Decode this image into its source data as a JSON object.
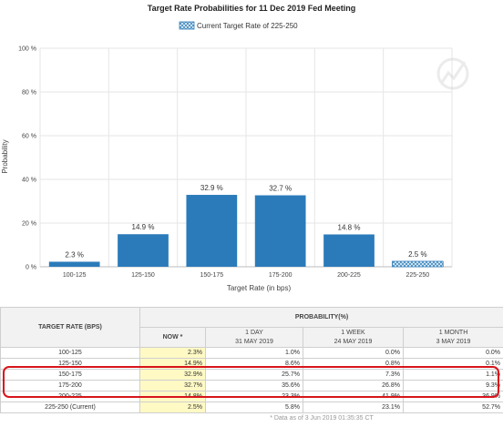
{
  "colors": {
    "bar": "#2b7bba",
    "current": "#9ccae6",
    "grid": "#e6e6e6",
    "highlight": "#d8141b"
  },
  "chart_data": {
    "type": "bar",
    "title": "Target Rate Probabilities for 11 Dec 2019 Fed Meeting",
    "legend": {
      "label": "Current Target Rate of 225-250",
      "position": "top"
    },
    "xlabel": "Target Rate (in bps)",
    "ylabel": "Probability",
    "ylim": [
      0,
      100
    ],
    "yticks": [
      0,
      20,
      40,
      60,
      80,
      100
    ],
    "ytick_labels": [
      "0 %",
      "20 %",
      "40 %",
      "60 %",
      "80 %",
      "100 %"
    ],
    "grid": true,
    "categories": [
      "100-125",
      "125-150",
      "150-175",
      "175-200",
      "200-225",
      "225-250"
    ],
    "values": [
      2.3,
      14.9,
      32.9,
      32.7,
      14.8,
      2.5
    ],
    "value_labels": [
      "2.3 %",
      "14.9 %",
      "32.9 %",
      "32.7 %",
      "14.8 %",
      "2.5 %"
    ],
    "current_category": "225-250"
  },
  "table": {
    "target_header": "TARGET RATE (BPS)",
    "prob_header": "PROBABILITY(%)",
    "columns": [
      {
        "label": "NOW *",
        "sub": ""
      },
      {
        "label": "1 DAY",
        "sub": "31 MAY 2019"
      },
      {
        "label": "1 WEEK",
        "sub": "24 MAY 2019"
      },
      {
        "label": "1 MONTH",
        "sub": "3 MAY 2019"
      }
    ],
    "rows": [
      {
        "range": "100-125",
        "values": [
          "2.3%",
          "1.0%",
          "0.0%",
          "0.0%"
        ]
      },
      {
        "range": "125-150",
        "values": [
          "14.9%",
          "8.6%",
          "0.8%",
          "0.1%"
        ]
      },
      {
        "range": "150-175",
        "values": [
          "32.9%",
          "25.7%",
          "7.3%",
          "1.1%"
        ]
      },
      {
        "range": "175-200",
        "values": [
          "32.7%",
          "35.6%",
          "26.8%",
          "9.3%"
        ]
      },
      {
        "range": "200-225",
        "values": [
          "14.8%",
          "23.3%",
          "41.9%",
          "36.9%"
        ]
      },
      {
        "range": "225-250 (Current)",
        "values": [
          "2.5%",
          "5.8%",
          "23.1%",
          "52.7%"
        ]
      }
    ],
    "note": "* Data as of 3 Jun 2019 01:35:35 CT"
  }
}
